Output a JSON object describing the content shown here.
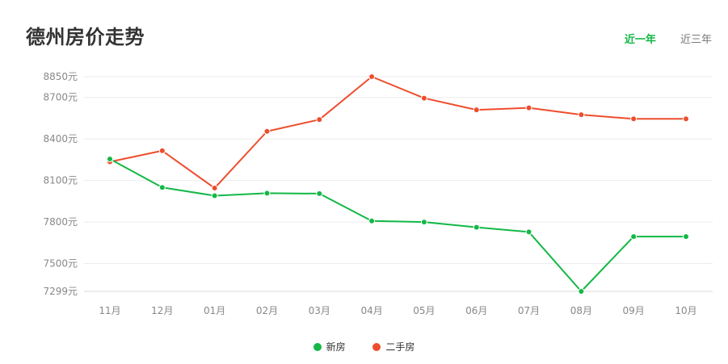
{
  "header": {
    "title": "德州房价走势",
    "tabs": [
      {
        "label": "近一年",
        "active": true
      },
      {
        "label": "近三年",
        "active": false
      }
    ]
  },
  "colors": {
    "new_house": "#13b846",
    "second_hand": "#ee4d2d",
    "active_tab": "#13b846"
  },
  "chart_data": {
    "type": "line",
    "title": "德州房价走势",
    "categories": [
      "11月",
      "12月",
      "01月",
      "02月",
      "03月",
      "04月",
      "05月",
      "06月",
      "07月",
      "08月",
      "09月",
      "10月"
    ],
    "series": [
      {
        "name": "新房",
        "color": "#13b846",
        "values": [
          8255,
          8050,
          7990,
          8008,
          8005,
          7808,
          7800,
          7762,
          7728,
          7299,
          7695,
          7695
        ]
      },
      {
        "name": "二手房",
        "color": "#ee4d2d",
        "values": [
          8235,
          8315,
          8045,
          8455,
          8540,
          8850,
          8695,
          8610,
          8625,
          8575,
          8545,
          8545
        ]
      }
    ],
    "yticks": [
      {
        "value": 7299,
        "label": "7299元"
      },
      {
        "value": 7500,
        "label": "7500元"
      },
      {
        "value": 7800,
        "label": "7800元"
      },
      {
        "value": 8100,
        "label": "8100元"
      },
      {
        "value": 8400,
        "label": "8400元"
      },
      {
        "value": 8700,
        "label": "8700元"
      },
      {
        "value": 8850,
        "label": "8850元"
      }
    ],
    "ylim": [
      7299,
      8850
    ],
    "grid": true,
    "legend_position": "bottom-center",
    "legend": [
      {
        "name": "新房",
        "color": "#13b846"
      },
      {
        "name": "二手房",
        "color": "#ee4d2d"
      }
    ]
  }
}
